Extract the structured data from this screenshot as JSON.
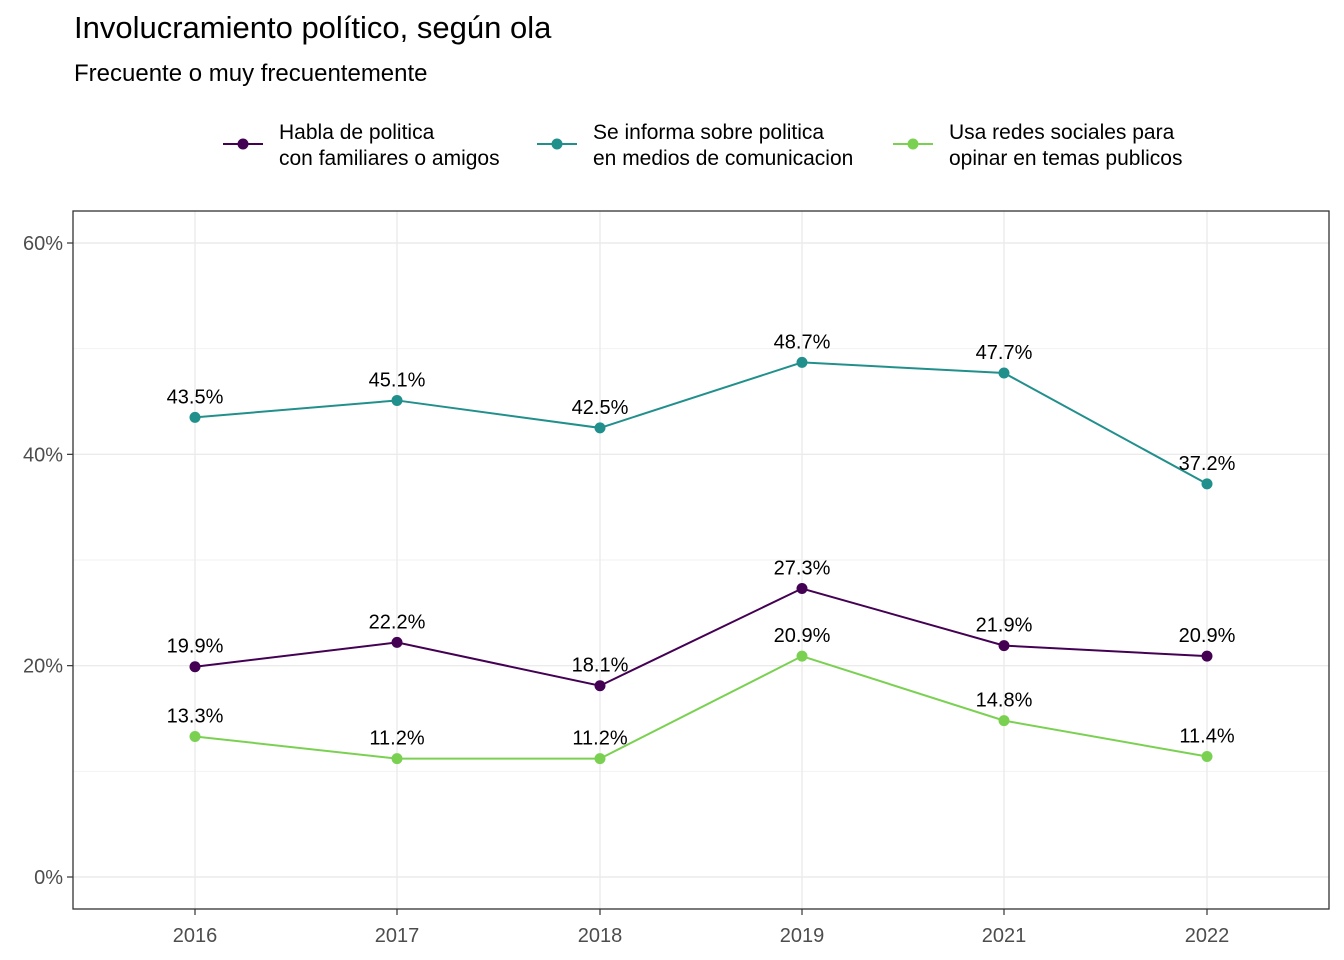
{
  "chart_data": {
    "type": "line",
    "title": "Involucramiento político, según ola",
    "subtitle": "Frecuente o muy frecuentemente",
    "xlabel": "",
    "ylabel": "",
    "x": [
      "2016",
      "2017",
      "2018",
      "2019",
      "2021",
      "2022"
    ],
    "ylim": [
      0,
      60
    ],
    "yticks": [
      0,
      20,
      40,
      60
    ],
    "ytick_labels": [
      "0%",
      "20%",
      "40%",
      "60%"
    ],
    "grid": true,
    "legend_position": "top",
    "series": [
      {
        "name_lines": [
          "Habla de politica",
          "con familiares o amigos"
        ],
        "color": "#440154",
        "values": [
          19.9,
          22.2,
          18.1,
          27.3,
          21.9,
          20.9
        ],
        "labels": [
          "19.9%",
          "22.2%",
          "18.1%",
          "27.3%",
          "21.9%",
          "20.9%"
        ]
      },
      {
        "name_lines": [
          "Se informa sobre politica",
          "en medios de comunicacion"
        ],
        "color": "#21908C",
        "values": [
          43.5,
          45.1,
          42.5,
          48.7,
          47.7,
          37.2
        ],
        "labels": [
          "43.5%",
          "45.1%",
          "42.5%",
          "48.7%",
          "47.7%",
          "37.2%"
        ]
      },
      {
        "name_lines": [
          "Usa redes sociales para",
          "opinar en temas publicos"
        ],
        "color": "#7AD151",
        "values": [
          13.3,
          11.2,
          11.2,
          20.9,
          14.8,
          11.4
        ],
        "labels": [
          "13.3%",
          "11.2%",
          "11.2%",
          "20.9%",
          "14.8%",
          "11.4%"
        ]
      }
    ]
  }
}
